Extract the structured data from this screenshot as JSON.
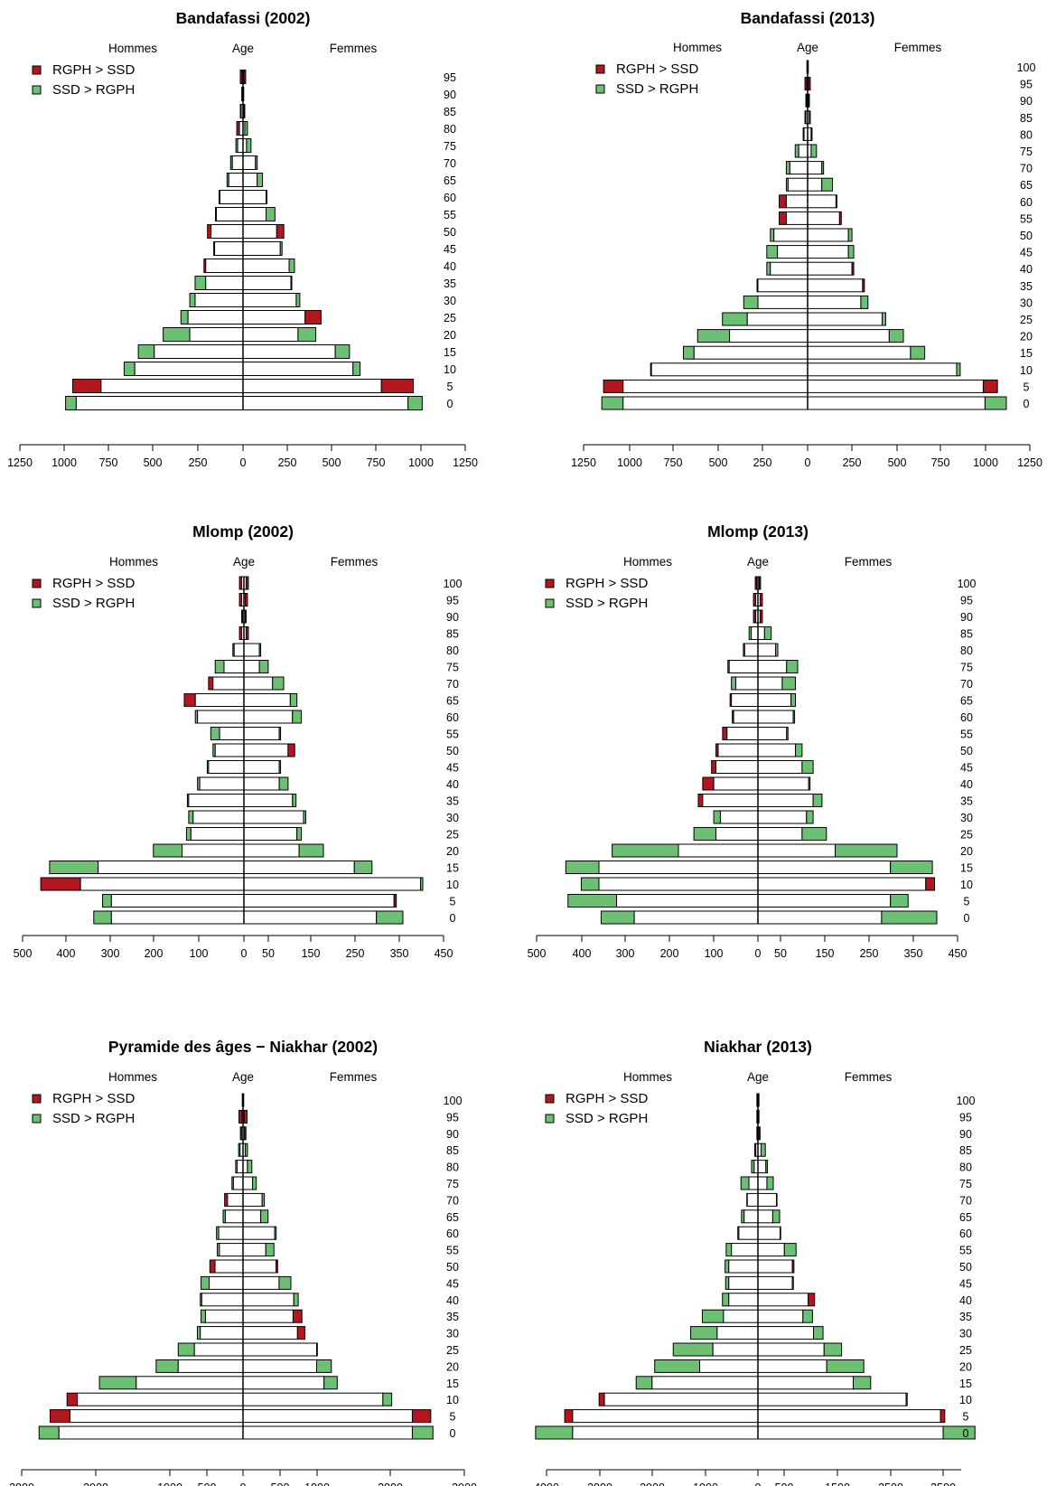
{
  "colors": {
    "red": "#b2161e",
    "green": "#6dbf73",
    "white": "#ffffff",
    "stroke": "#000000"
  },
  "header": {
    "left": "Hommes",
    "center": "Age",
    "right": "Femmes"
  },
  "legend": [
    "RGPH > SSD",
    "SSD > RGPH"
  ],
  "chart_data": [
    {
      "type": "bar",
      "title": "Bandafassi (2002)",
      "ages": [
        "0",
        "5",
        "10",
        "15",
        "20",
        "25",
        "30",
        "35",
        "40",
        "45",
        "50",
        "55",
        "60",
        "65",
        "70",
        "75",
        "80",
        "85",
        "90",
        "95"
      ],
      "xticks": [
        "1250",
        "1000",
        "750",
        "500",
        "250",
        "0",
        "250",
        "500",
        "750",
        "1000",
        "1250"
      ],
      "men_common": [
        940,
        800,
        610,
        500,
        300,
        310,
        270,
        210,
        210,
        160,
        180,
        150,
        130,
        80,
        60,
        30,
        20,
        10,
        5,
        5
      ],
      "men_excess": [
        60,
        160,
        60,
        90,
        150,
        40,
        30,
        60,
        10,
        5,
        20,
        5,
        5,
        10,
        10,
        10,
        15,
        5,
        2,
        10
      ],
      "men_excess_type": [
        "g",
        "r",
        "g",
        "g",
        "g",
        "g",
        "g",
        "g",
        "r",
        "g",
        "r",
        "g",
        "g",
        "g",
        "g",
        "g",
        "r",
        "r",
        "r",
        "r"
      ],
      "women_common": [
        930,
        780,
        620,
        520,
        310,
        350,
        300,
        270,
        260,
        210,
        190,
        130,
        130,
        80,
        70,
        20,
        10,
        5,
        2,
        5
      ],
      "women_excess": [
        80,
        180,
        40,
        80,
        100,
        90,
        20,
        5,
        30,
        10,
        40,
        50,
        5,
        30,
        10,
        25,
        15,
        5,
        2,
        10
      ],
      "women_excess_type": [
        "g",
        "r",
        "g",
        "g",
        "g",
        "r",
        "g",
        "g",
        "g",
        "g",
        "r",
        "g",
        "g",
        "g",
        "g",
        "g",
        "g",
        "r",
        "r",
        "r"
      ]
    },
    {
      "type": "bar",
      "title": "Bandafassi (2013)",
      "ages": [
        "0",
        "5",
        "10",
        "15",
        "20",
        "25",
        "30",
        "35",
        "40",
        "45",
        "50",
        "55",
        "60",
        "65",
        "70",
        "75",
        "80",
        "85",
        "90",
        "95",
        "100"
      ],
      "xticks": [
        "1250",
        "1000",
        "750",
        "500",
        "250",
        "0",
        "250",
        "500",
        "750",
        "1000",
        "1250"
      ],
      "men_common": [
        1040,
        1040,
        880,
        640,
        440,
        340,
        280,
        280,
        210,
        170,
        190,
        120,
        120,
        110,
        100,
        50,
        20,
        10,
        5,
        5,
        2
      ],
      "men_excess": [
        120,
        110,
        5,
        60,
        180,
        140,
        80,
        5,
        20,
        60,
        20,
        40,
        40,
        10,
        20,
        20,
        5,
        5,
        5,
        10,
        2
      ],
      "men_excess_type": [
        "g",
        "r",
        "g",
        "g",
        "g",
        "g",
        "g",
        "g",
        "g",
        "g",
        "g",
        "r",
        "r",
        "g",
        "g",
        "g",
        "g",
        "r",
        "r",
        "r",
        "r"
      ],
      "women_common": [
        1000,
        990,
        840,
        580,
        460,
        420,
        300,
        310,
        250,
        230,
        230,
        180,
        160,
        80,
        80,
        20,
        20,
        10,
        5,
        5,
        2
      ],
      "women_excess": [
        120,
        80,
        20,
        80,
        80,
        20,
        40,
        10,
        10,
        30,
        20,
        10,
        5,
        60,
        10,
        30,
        5,
        5,
        5,
        10,
        2
      ],
      "women_excess_type": [
        "g",
        "r",
        "g",
        "g",
        "g",
        "g",
        "g",
        "r",
        "r",
        "g",
        "g",
        "r",
        "r",
        "g",
        "g",
        "g",
        "g",
        "r",
        "r",
        "r",
        "r"
      ]
    },
    {
      "type": "bar",
      "title": "Mlomp (2002)",
      "ages": [
        "0",
        "5",
        "10",
        "15",
        "20",
        "25",
        "30",
        "35",
        "40",
        "45",
        "50",
        "55",
        "60",
        "65",
        "70",
        "75",
        "80",
        "85",
        "90",
        "95",
        "100"
      ],
      "xticks": [
        "500",
        "400",
        "300",
        "200",
        "100",
        "0",
        "50",
        "150",
        "250",
        "350",
        "450"
      ],
      "men_common": [
        300,
        300,
        370,
        330,
        140,
        120,
        115,
        125,
        100,
        80,
        65,
        55,
        105,
        110,
        70,
        45,
        22,
        5,
        3,
        5,
        5
      ],
      "men_excess": [
        40,
        20,
        90,
        110,
        65,
        10,
        10,
        3,
        5,
        3,
        5,
        20,
        5,
        25,
        10,
        20,
        3,
        5,
        2,
        5,
        5
      ],
      "men_excess_type": [
        "g",
        "g",
        "r",
        "g",
        "g",
        "g",
        "g",
        "g",
        "g",
        "g",
        "g",
        "g",
        "g",
        "r",
        "r",
        "g",
        "g",
        "r",
        "r",
        "r",
        "r"
      ],
      "women_common": [
        300,
        340,
        400,
        250,
        125,
        120,
        135,
        110,
        80,
        80,
        100,
        80,
        110,
        105,
        65,
        35,
        35,
        5,
        3,
        3,
        5
      ],
      "women_excess": [
        60,
        5,
        5,
        40,
        55,
        10,
        5,
        8,
        20,
        3,
        15,
        3,
        20,
        15,
        25,
        20,
        3,
        5,
        2,
        5,
        5
      ],
      "women_excess_type": [
        "g",
        "r",
        "g",
        "g",
        "g",
        "g",
        "g",
        "g",
        "g",
        "g",
        "r",
        "g",
        "g",
        "g",
        "g",
        "g",
        "g",
        "r",
        "r",
        "r",
        "r"
      ]
    },
    {
      "type": "bar",
      "title": "Mlomp (2013)",
      "ages": [
        "0",
        "5",
        "10",
        "15",
        "20",
        "25",
        "30",
        "35",
        "40",
        "45",
        "50",
        "55",
        "60",
        "65",
        "70",
        "75",
        "80",
        "85",
        "90",
        "95",
        "100"
      ],
      "xticks": [
        "500",
        "400",
        "300",
        "200",
        "100",
        "0",
        "50",
        "150",
        "250",
        "350",
        "450"
      ],
      "men_common": [
        280,
        320,
        360,
        360,
        180,
        95,
        85,
        125,
        100,
        95,
        90,
        70,
        55,
        60,
        50,
        65,
        30,
        15,
        5,
        5,
        3
      ],
      "men_excess": [
        75,
        110,
        40,
        75,
        150,
        50,
        15,
        10,
        25,
        10,
        5,
        10,
        3,
        3,
        10,
        3,
        3,
        5,
        5,
        5,
        3
      ],
      "men_excess_type": [
        "g",
        "g",
        "g",
        "g",
        "g",
        "g",
        "g",
        "r",
        "r",
        "r",
        "r",
        "r",
        "r",
        "r",
        "g",
        "g",
        "g",
        "g",
        "r",
        "r",
        "r"
      ],
      "women_common": [
        280,
        300,
        380,
        300,
        175,
        100,
        110,
        125,
        115,
        100,
        85,
        65,
        80,
        75,
        55,
        65,
        40,
        15,
        5,
        5,
        3
      ],
      "women_excess": [
        125,
        40,
        20,
        95,
        140,
        55,
        15,
        20,
        3,
        25,
        15,
        3,
        3,
        10,
        30,
        25,
        5,
        15,
        5,
        5,
        3
      ],
      "women_excess_type": [
        "g",
        "g",
        "r",
        "g",
        "g",
        "g",
        "g",
        "g",
        "g",
        "g",
        "g",
        "g",
        "g",
        "g",
        "g",
        "g",
        "g",
        "g",
        "r",
        "r",
        "r"
      ]
    },
    {
      "type": "bar",
      "title": "Pyramide des âges − Niakhar (2002)",
      "ages": [
        "0",
        "5",
        "10",
        "15",
        "20",
        "25",
        "30",
        "35",
        "40",
        "45",
        "50",
        "55",
        "60",
        "65",
        "70",
        "75",
        "80",
        "85",
        "90",
        "95",
        "100"
      ],
      "xticks": [
        "3000",
        "2000",
        "1000",
        "500",
        "0",
        "500",
        "1000",
        "2000",
        "3000"
      ],
      "men_common": [
        2500,
        2350,
        2250,
        1450,
        880,
        660,
        580,
        510,
        560,
        460,
        380,
        320,
        330,
        240,
        210,
        130,
        80,
        40,
        20,
        15,
        5
      ],
      "men_excess": [
        270,
        270,
        140,
        500,
        300,
        220,
        40,
        60,
        20,
        110,
        70,
        30,
        30,
        30,
        40,
        20,
        20,
        20,
        15,
        40,
        5
      ],
      "men_excess_type": [
        "g",
        "r",
        "r",
        "g",
        "g",
        "g",
        "g",
        "g",
        "g",
        "g",
        "r",
        "g",
        "g",
        "g",
        "r",
        "g",
        "g",
        "g",
        "r",
        "r",
        "r"
      ],
      "women_common": [
        2300,
        2300,
        1900,
        1100,
        1000,
        1000,
        740,
        680,
        690,
        490,
        450,
        310,
        430,
        240,
        260,
        130,
        60,
        30,
        20,
        15,
        5
      ],
      "women_excess": [
        280,
        250,
        120,
        180,
        200,
        10,
        100,
        120,
        60,
        160,
        20,
        110,
        20,
        100,
        30,
        50,
        60,
        30,
        20,
        40,
        5
      ],
      "women_excess_type": [
        "g",
        "r",
        "g",
        "g",
        "g",
        "g",
        "r",
        "r",
        "g",
        "g",
        "r",
        "g",
        "g",
        "g",
        "g",
        "g",
        "g",
        "g",
        "r",
        "r",
        "r"
      ]
    },
    {
      "type": "bar",
      "title": "Niakhar (2013)",
      "ages": [
        "0",
        "5",
        "10",
        "15",
        "20",
        "25",
        "30",
        "35",
        "40",
        "45",
        "50",
        "55",
        "60",
        "65",
        "70",
        "75",
        "80",
        "85",
        "90",
        "95",
        "100"
      ],
      "xticks": [
        "4000",
        "3000",
        "2000",
        "1000",
        "0",
        "500",
        "1500",
        "2500",
        "3500"
      ],
      "men_common": [
        3500,
        3500,
        2900,
        2000,
        1100,
        850,
        770,
        650,
        550,
        550,
        550,
        500,
        360,
        260,
        200,
        170,
        70,
        40,
        10,
        10,
        10
      ],
      "men_excess": [
        700,
        150,
        100,
        300,
        850,
        750,
        500,
        400,
        120,
        60,
        70,
        100,
        20,
        50,
        10,
        150,
        50,
        20,
        10,
        10,
        10
      ],
      "men_excess_type": [
        "g",
        "r",
        "r",
        "g",
        "g",
        "g",
        "g",
        "g",
        "g",
        "g",
        "g",
        "g",
        "g",
        "g",
        "g",
        "g",
        "g",
        "g",
        "r",
        "r",
        "r"
      ],
      "women_common": [
        3500,
        3450,
        2800,
        1800,
        1300,
        1250,
        1050,
        850,
        950,
        650,
        650,
        500,
        420,
        280,
        350,
        170,
        150,
        60,
        20,
        10,
        10
      ],
      "women_excess": [
        600,
        80,
        20,
        330,
        700,
        330,
        180,
        180,
        120,
        20,
        30,
        220,
        10,
        130,
        10,
        120,
        30,
        80,
        20,
        10,
        10
      ],
      "women_excess_type": [
        "g",
        "r",
        "g",
        "g",
        "g",
        "g",
        "g",
        "g",
        "r",
        "g",
        "r",
        "g",
        "g",
        "g",
        "g",
        "g",
        "g",
        "g",
        "r",
        "r",
        "r"
      ]
    }
  ]
}
